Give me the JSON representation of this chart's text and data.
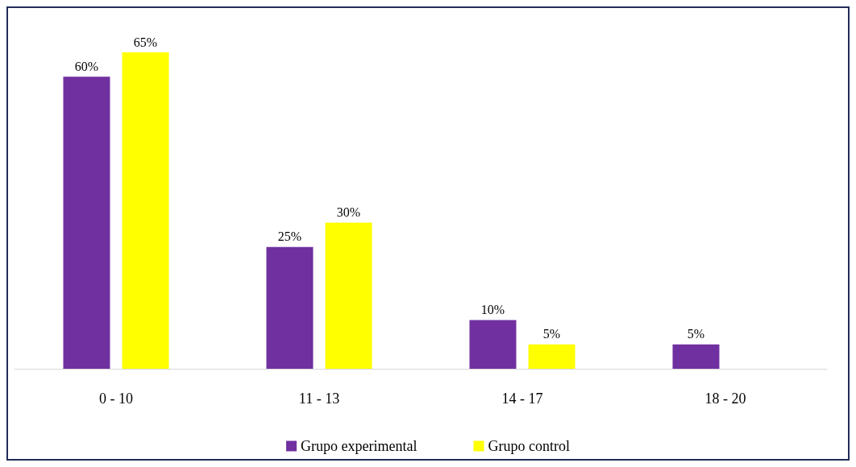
{
  "chart_data": {
    "type": "bar",
    "categories": [
      "0 - 10",
      "11 - 13",
      "14 - 17",
      "18 - 20"
    ],
    "series": [
      {
        "name": "Grupo experimental",
        "color": "#7030a0",
        "values": [
          60,
          25,
          10,
          5
        ],
        "value_labels": [
          "60%",
          "25%",
          "10%",
          "5%"
        ]
      },
      {
        "name": "Grupo control",
        "color": "#ffff00",
        "values": [
          65,
          30,
          5,
          null
        ],
        "value_labels": [
          "65%",
          "30%",
          "5%",
          null
        ]
      }
    ],
    "legend": "bottom"
  }
}
